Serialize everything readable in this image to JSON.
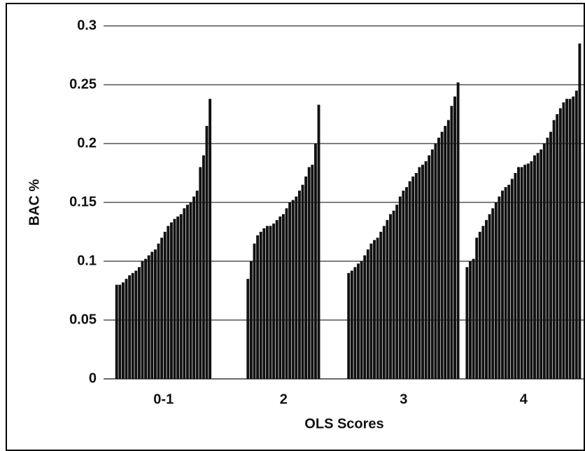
{
  "chart_data": {
    "type": "bar",
    "y_label": "BAC %",
    "x_label": "OLS Scores",
    "categories": [
      "0-1",
      "2",
      "3",
      "4"
    ],
    "values": [
      [
        0.08,
        0.08,
        0.082,
        0.085,
        0.088,
        0.09,
        0.092,
        0.095,
        0.1,
        0.102,
        0.105,
        0.108,
        0.11,
        0.115,
        0.12,
        0.125,
        0.13,
        0.133,
        0.136,
        0.138,
        0.14,
        0.145,
        0.148,
        0.15,
        0.155,
        0.16,
        0.18,
        0.19,
        0.215,
        0.238
      ],
      [
        0.085,
        0.1,
        0.115,
        0.122,
        0.125,
        0.128,
        0.13,
        0.13,
        0.132,
        0.135,
        0.138,
        0.14,
        0.145,
        0.15,
        0.152,
        0.155,
        0.16,
        0.165,
        0.172,
        0.18,
        0.182,
        0.2,
        0.233
      ],
      [
        0.09,
        0.092,
        0.095,
        0.098,
        0.1,
        0.105,
        0.11,
        0.115,
        0.118,
        0.12,
        0.125,
        0.13,
        0.135,
        0.14,
        0.143,
        0.148,
        0.155,
        0.16,
        0.163,
        0.168,
        0.172,
        0.175,
        0.18,
        0.182,
        0.185,
        0.19,
        0.195,
        0.2,
        0.205,
        0.21,
        0.215,
        0.22,
        0.232,
        0.24,
        0.252
      ],
      [
        0.095,
        0.1,
        0.102,
        0.12,
        0.125,
        0.13,
        0.135,
        0.14,
        0.145,
        0.15,
        0.155,
        0.16,
        0.163,
        0.165,
        0.17,
        0.175,
        0.18,
        0.18,
        0.182,
        0.183,
        0.185,
        0.19,
        0.192,
        0.195,
        0.2,
        0.205,
        0.21,
        0.22,
        0.225,
        0.23,
        0.235,
        0.238,
        0.238,
        0.24,
        0.245,
        0.285
      ]
    ],
    "color": "#111111",
    "ylim": [
      0,
      0.3
    ],
    "yticks": [
      0,
      0.05,
      0.1,
      0.15,
      0.2,
      0.25,
      0.3
    ],
    "grid": true
  }
}
